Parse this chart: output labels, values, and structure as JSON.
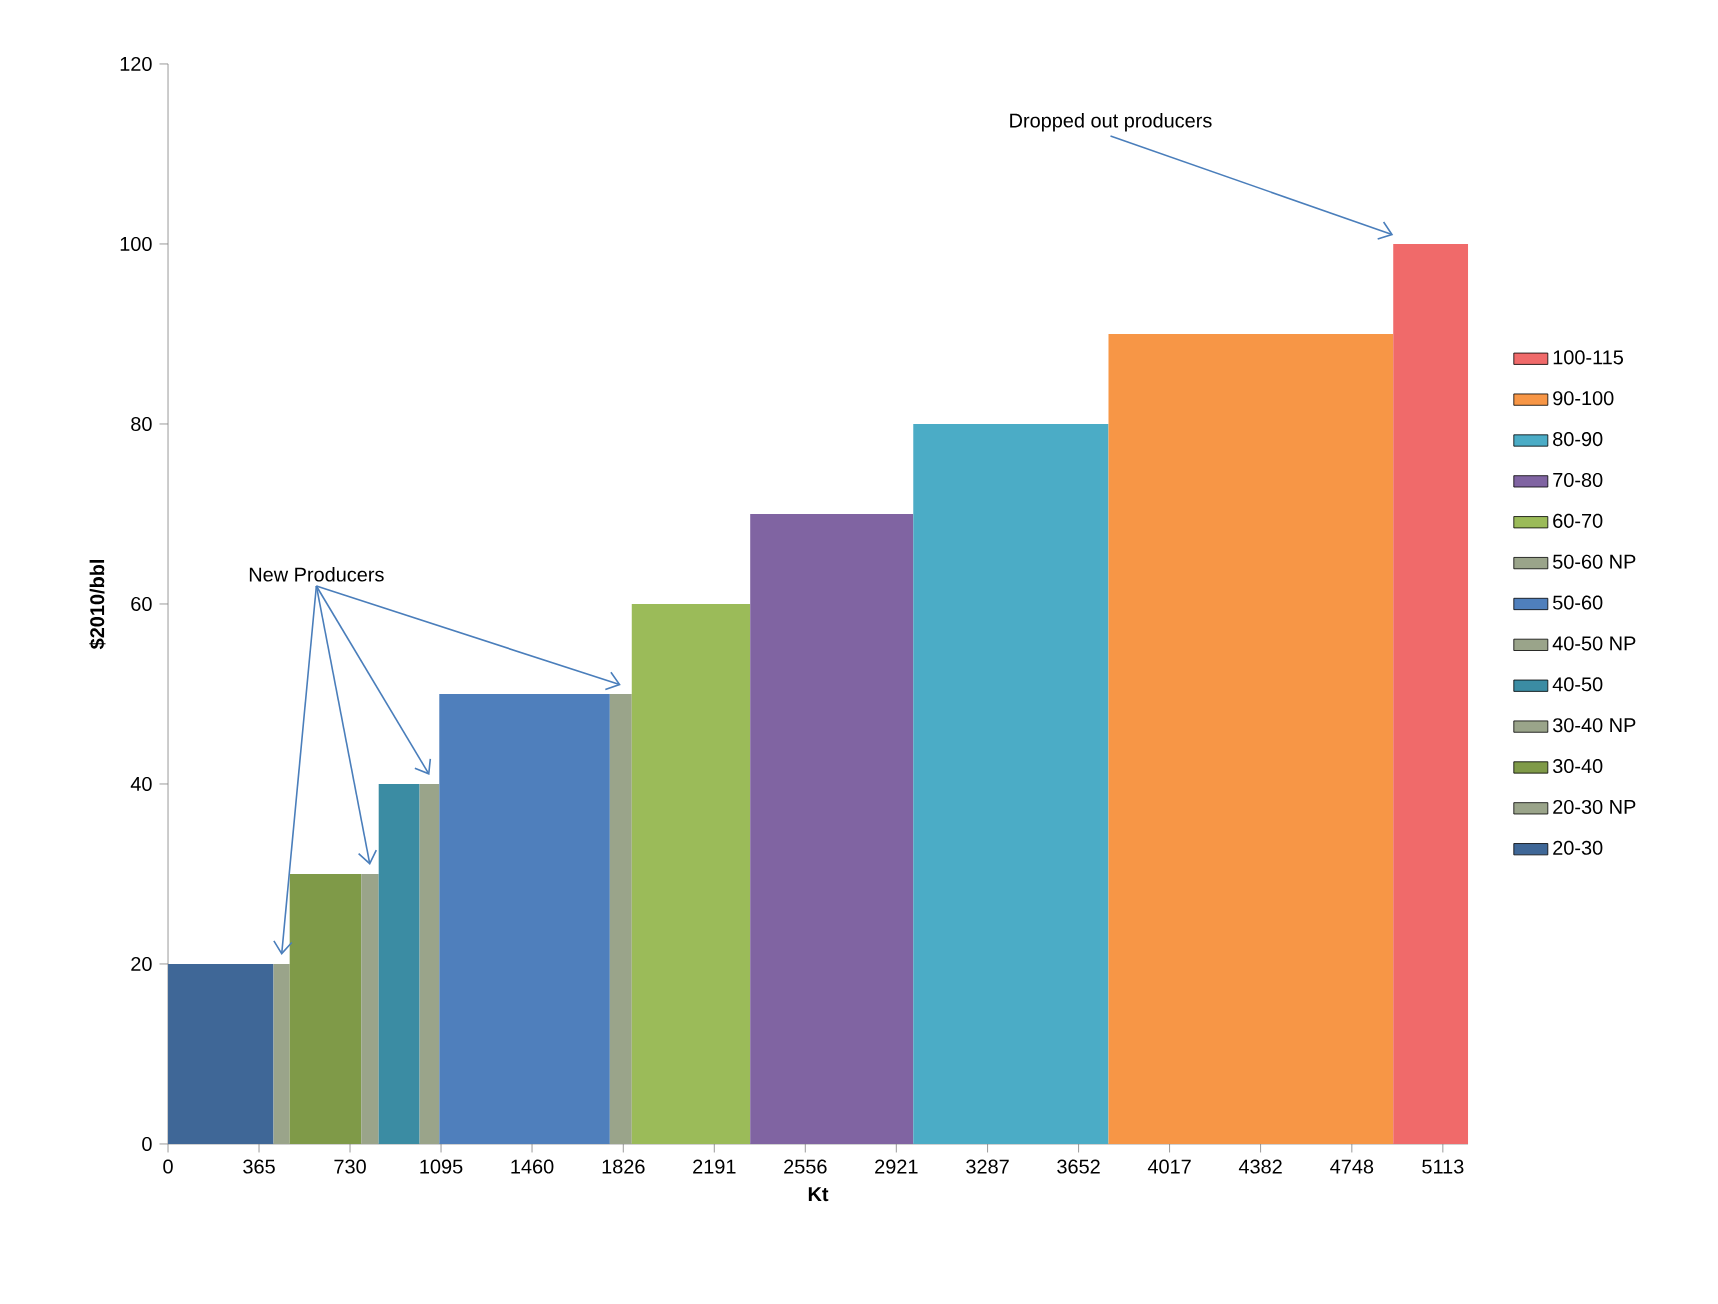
{
  "chart_data": {
    "type": "area",
    "xlabel": "Kt",
    "ylabel": "$2010/bbl",
    "xlim": [
      0,
      5214
    ],
    "ylim": [
      0,
      120
    ],
    "xticks": [
      0,
      365,
      730,
      1095,
      1460,
      1826,
      2191,
      2556,
      2921,
      3287,
      3652,
      4017,
      4382,
      4748,
      5113
    ],
    "yticks": [
      0,
      20,
      40,
      60,
      80,
      100,
      120
    ],
    "legend": "right",
    "grid": false,
    "annotations": [
      {
        "text": "New Producers",
        "x": 455,
        "y": 20
      },
      {
        "text": "Dropped out producers",
        "x": 4914,
        "y": 100
      }
    ],
    "series": [
      {
        "name": "20-30",
        "color": "#3f6797",
        "x": [
          0,
          423
        ],
        "values": [
          20,
          20
        ]
      },
      {
        "name": "20-30 NP",
        "color": "#9aa48a",
        "x": [
          423,
          488
        ],
        "values": [
          20,
          20
        ]
      },
      {
        "name": "30-40",
        "color": "#7f9a48",
        "x": [
          488,
          775
        ],
        "values": [
          30,
          30
        ]
      },
      {
        "name": "30-40 NP",
        "color": "#9aa48a",
        "x": [
          775,
          845
        ],
        "values": [
          30,
          30
        ]
      },
      {
        "name": "40-50",
        "color": "#3b8ca3",
        "x": [
          845,
          1009
        ],
        "values": [
          40,
          40
        ]
      },
      {
        "name": "40-50 NP",
        "color": "#9aa48a",
        "x": [
          1009,
          1088
        ],
        "values": [
          40,
          40
        ]
      },
      {
        "name": "50-60",
        "color": "#4f7fbc",
        "x": [
          1088,
          1772
        ],
        "values": [
          50,
          50
        ]
      },
      {
        "name": "50-60 NP",
        "color": "#9aa48a",
        "x": [
          1772,
          1860
        ],
        "values": [
          50,
          50
        ]
      },
      {
        "name": "60-70",
        "color": "#9bbb59",
        "x": [
          1860,
          2335
        ],
        "values": [
          60,
          60
        ]
      },
      {
        "name": "70-80",
        "color": "#8064a2",
        "x": [
          2335,
          2989
        ],
        "values": [
          70,
          70
        ]
      },
      {
        "name": "80-90",
        "color": "#4bacc6",
        "x": [
          2989,
          3772
        ],
        "values": [
          80,
          80
        ]
      },
      {
        "name": "90-100",
        "color": "#f79646",
        "x": [
          3772,
          4914
        ],
        "values": [
          90,
          90
        ]
      },
      {
        "name": "100-115",
        "color": "#f06a6a",
        "x": [
          4914,
          5214
        ],
        "values": [
          100,
          100
        ]
      }
    ]
  }
}
